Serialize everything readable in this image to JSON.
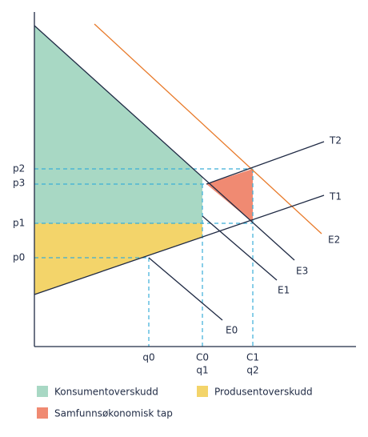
{
  "price_labels": [
    "p2",
    "p3",
    "p1",
    "p0"
  ],
  "quantity_labels": [
    "q0",
    "C0",
    "q1",
    "C1",
    "q2"
  ],
  "curve_labels": [
    "T2",
    "T1",
    "E2",
    "E3",
    "E1",
    "E0"
  ],
  "legend": [
    "Konsumentoverskudd",
    "Produsentoverskudd",
    "Samfunnsøkonomisk tap"
  ]
}
